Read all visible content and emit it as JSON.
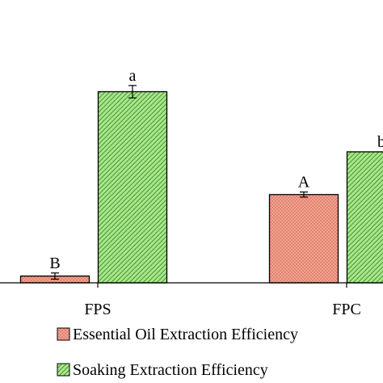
{
  "chart_data": {
    "type": "bar",
    "categories": [
      "FPS",
      "FPC"
    ],
    "series": [
      {
        "name": "Essential Oil Extraction Efficiency",
        "color": "#f4a08e",
        "pattern": "dots",
        "values": [
          1.2,
          15.7
        ],
        "errors": [
          0.55,
          0.45
        ],
        "sig_labels": [
          "B",
          "A"
        ]
      },
      {
        "name": "Soaking Extraction Efficiency",
        "color": "#a7e88a",
        "pattern": "diagonal",
        "values": [
          34,
          23.3
        ],
        "errors": [
          1.1,
          0.0
        ],
        "sig_labels": [
          "a",
          "b"
        ]
      }
    ],
    "ylim": [
      0,
      46
    ],
    "legend_position": "bottom"
  }
}
